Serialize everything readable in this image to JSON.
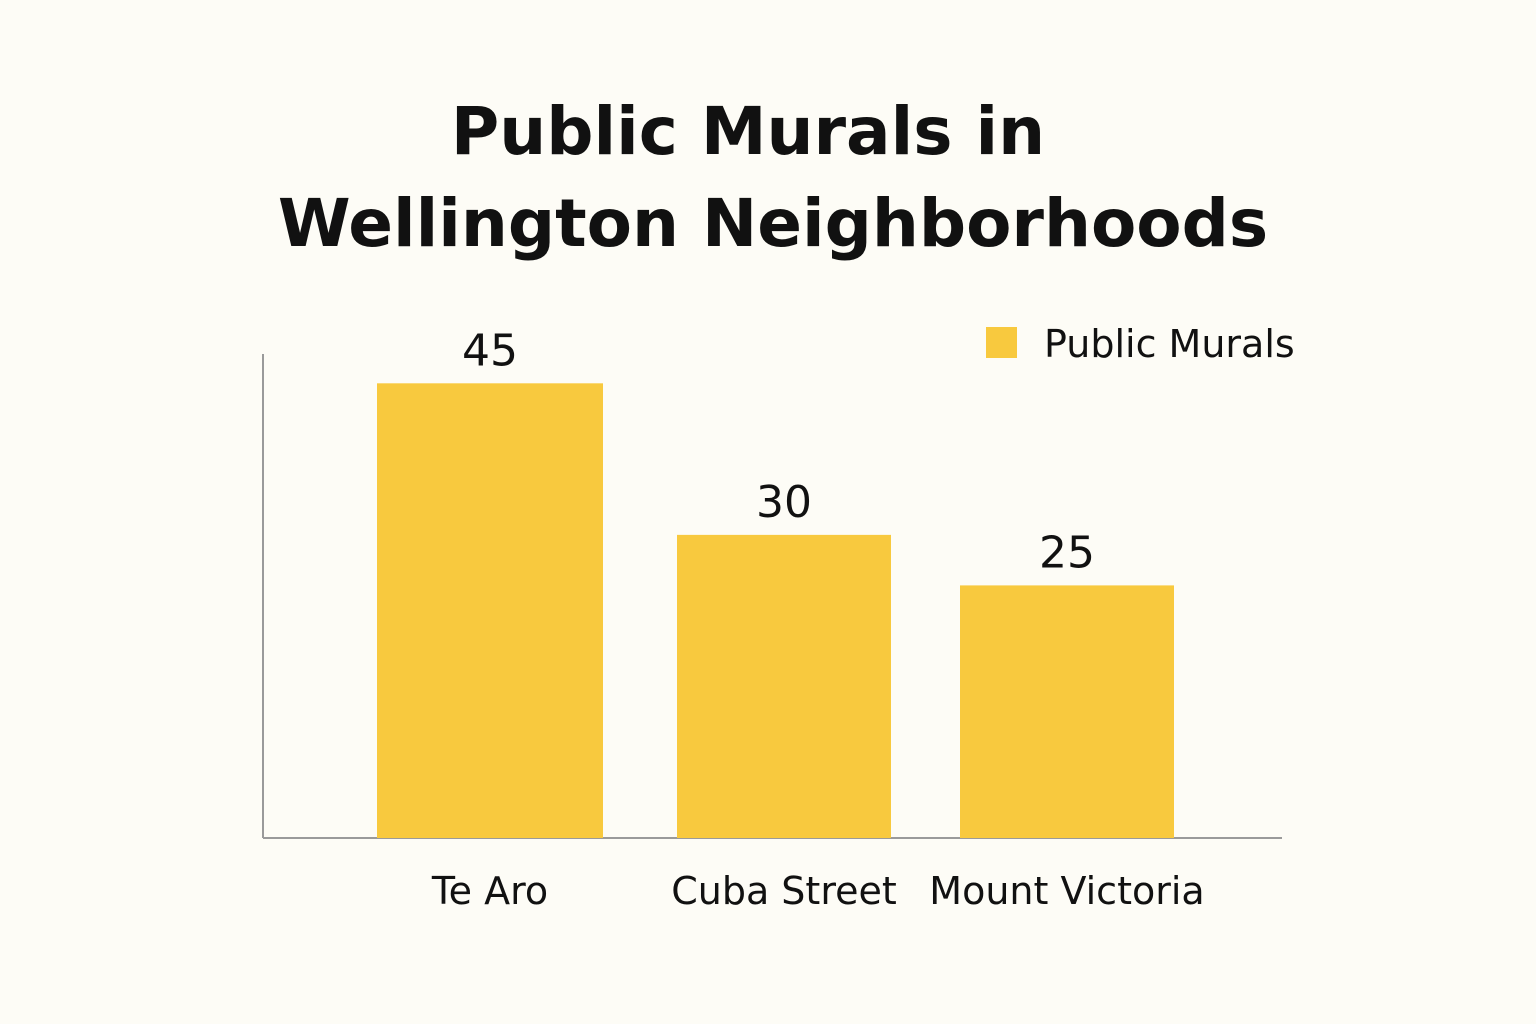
{
  "chart_data": {
    "type": "bar",
    "title_lines": [
      "Public Murals in",
      "Wellington Neighborhoods"
    ],
    "categories": [
      "Te Aro",
      "Cuba Street",
      "Mount Victoria"
    ],
    "series": [
      {
        "name": "Public Murals",
        "values": [
          45,
          30,
          25
        ],
        "color": "#f8c93e"
      }
    ],
    "data_labels": [
      "45",
      "30",
      "25"
    ],
    "xlabel": "",
    "ylabel": "",
    "ylim": [
      0,
      48
    ],
    "grid": false,
    "legend_position": "top-right",
    "axis_color": "#9a9a9a"
  }
}
